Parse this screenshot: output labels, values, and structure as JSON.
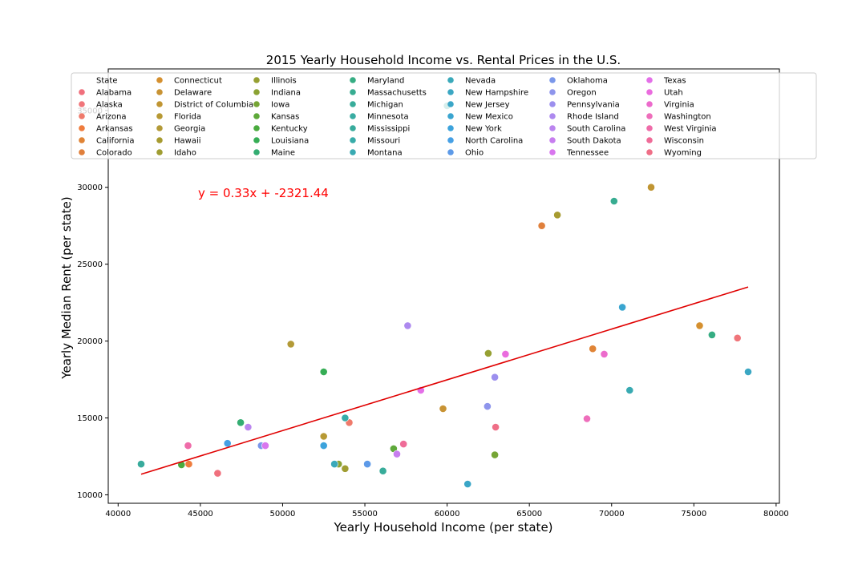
{
  "chart_data": {
    "type": "scatter",
    "title": "2015 Yearly Household Income vs. Rental Prices in the U.S.",
    "xlabel": "Yearly Household Income (per state)",
    "ylabel": "Yearly Median Rent (per state)",
    "xlim": [
      39400,
      80200
    ],
    "ylim": [
      9450,
      37700
    ],
    "x_ticks": [
      40000,
      45000,
      50000,
      55000,
      60000,
      65000,
      70000,
      75000,
      80000
    ],
    "y_ticks": [
      10000,
      15000,
      20000,
      25000,
      30000,
      35000
    ],
    "grid": false,
    "legend": {
      "title": "State",
      "placement": "top",
      "columns": 8
    },
    "annotation": "y = 0.33x + -2321.44",
    "trend_line": {
      "slope": 0.33,
      "intercept": -2321.44,
      "x_range": [
        41400,
        78300
      ],
      "color": "#e00000"
    },
    "series": [
      {
        "name": "Alabama",
        "color": "#f0707d",
        "x": 46050,
        "y": 11400
      },
      {
        "name": "Alaska",
        "color": "#f0757a",
        "x": 77650,
        "y": 20200
      },
      {
        "name": "Arizona",
        "color": "#ef7a6b",
        "x": 54050,
        "y": 14700
      },
      {
        "name": "Arkansas",
        "color": "#ef7c3d",
        "x": 44300,
        "y": 12000
      },
      {
        "name": "California",
        "color": "#e08436",
        "x": 68850,
        "y": 19500
      },
      {
        "name": "Colorado",
        "color": "#e0803c",
        "x": 65750,
        "y": 27500
      },
      {
        "name": "Connecticut",
        "color": "#d5902f",
        "x": 75350,
        "y": 21000
      },
      {
        "name": "Delaware",
        "color": "#c89334",
        "x": 59750,
        "y": 15600
      },
      {
        "name": "District of Columbia",
        "color": "#c09533",
        "x": 72400,
        "y": 30000
      },
      {
        "name": "Florida",
        "color": "#b79934",
        "x": 52500,
        "y": 13800
      },
      {
        "name": "Georgia",
        "color": "#b39a37",
        "x": 50500,
        "y": 19800
      },
      {
        "name": "Hawaii",
        "color": "#a79b30",
        "x": 66700,
        "y": 28200
      },
      {
        "name": "Idaho",
        "color": "#a09d32",
        "x": 53800,
        "y": 11700
      },
      {
        "name": "Illinois",
        "color": "#96a032",
        "x": 62500,
        "y": 19200
      },
      {
        "name": "Indiana",
        "color": "#8ba233",
        "x": 53400,
        "y": 12000
      },
      {
        "name": "Iowa",
        "color": "#76a535",
        "x": 62900,
        "y": 12600
      },
      {
        "name": "Kansas",
        "color": "#5ea93a",
        "x": 56750,
        "y": 13000
      },
      {
        "name": "Kentucky",
        "color": "#4aab3e",
        "x": 43850,
        "y": 11950
      },
      {
        "name": "Louisiana",
        "color": "#36ad55",
        "x": 52500,
        "y": 18000
      },
      {
        "name": "Maine",
        "color": "#34ad72",
        "x": 47450,
        "y": 14700
      },
      {
        "name": "Maryland",
        "color": "#36ad83",
        "x": 76100,
        "y": 20400
      },
      {
        "name": "Massachusetts",
        "color": "#37ac91",
        "x": 70150,
        "y": 29100
      },
      {
        "name": "Michigan",
        "color": "#38ac9a",
        "x": 56100,
        "y": 11550
      },
      {
        "name": "Minnesota",
        "color": "#39aca2",
        "x": 60000,
        "y": 35300
      },
      {
        "name": "Mississippi",
        "color": "#38ab9c",
        "x": 41400,
        "y": 12000
      },
      {
        "name": "Missouri",
        "color": "#38aca9",
        "x": 53800,
        "y": 15000
      },
      {
        "name": "Montana",
        "color": "#39aab2",
        "x": 71100,
        "y": 16800
      },
      {
        "name": "Nevada",
        "color": "#3aa9ba",
        "x": 53150,
        "y": 12000
      },
      {
        "name": "New Hampshire",
        "color": "#3ba7c3",
        "x": 78300,
        "y": 18000
      },
      {
        "name": "New Jersey",
        "color": "#3aa6c7",
        "x": 61250,
        "y": 10700
      },
      {
        "name": "New Mexico",
        "color": "#3aa5d0",
        "x": 70650,
        "y": 22200
      },
      {
        "name": "New York",
        "color": "#3ca3dc",
        "x": 52500,
        "y": 13200
      },
      {
        "name": "North Carolina",
        "color": "#46a0e5",
        "x": 46650,
        "y": 13350
      },
      {
        "name": "Ohio",
        "color": "#5d9ae8",
        "x": 55150,
        "y": 12000
      },
      {
        "name": "Oklahoma",
        "color": "#7a97ea",
        "x": 48700,
        "y": 13200
      },
      {
        "name": "Oregon",
        "color": "#8e95ec",
        "x": 62450,
        "y": 15750
      },
      {
        "name": "Pennsylvania",
        "color": "#9c8fee",
        "x": 62900,
        "y": 17650
      },
      {
        "name": "Rhode Island",
        "color": "#ad89ef",
        "x": 57600,
        "y": 21000
      },
      {
        "name": "South Carolina",
        "color": "#bb85ef",
        "x": 47900,
        "y": 14400
      },
      {
        "name": "South Dakota",
        "color": "#c77eef",
        "x": 56950,
        "y": 12650
      },
      {
        "name": "Tennessee",
        "color": "#d876ee",
        "x": 48950,
        "y": 13200
      },
      {
        "name": "Texas",
        "color": "#e470e8",
        "x": 58400,
        "y": 16800
      },
      {
        "name": "Utah",
        "color": "#ea6cde",
        "x": 63550,
        "y": 19150
      },
      {
        "name": "Virginia",
        "color": "#ec6bcc",
        "x": 69550,
        "y": 19150
      },
      {
        "name": "Washington",
        "color": "#ee6ebb",
        "x": 68500,
        "y": 14950
      },
      {
        "name": "West Virginia",
        "color": "#ef6ca9",
        "x": 44250,
        "y": 13200
      },
      {
        "name": "Wisconsin",
        "color": "#ef6c98",
        "x": 57350,
        "y": 13300
      },
      {
        "name": "Wyoming",
        "color": "#ef6f87",
        "x": 62950,
        "y": 14400
      }
    ]
  }
}
